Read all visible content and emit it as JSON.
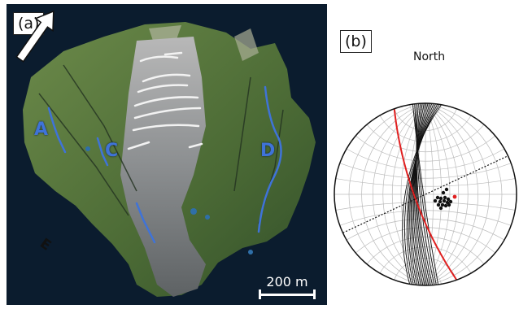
{
  "panel_a": {
    "tag": "(a)",
    "fault_labels": [
      "A",
      "C",
      "D"
    ],
    "scale_label": "200 m",
    "arrow_label": "E"
  },
  "panel_b": {
    "tag": "(b)",
    "north_label": "North"
  },
  "colors": {
    "background": "#0b1c2e",
    "terrain": "#4f6b3a",
    "rock": "#8a8d8f",
    "fault": "#3f73d8",
    "highlight_circle": "#e02020",
    "pole_highlight": "#e02020"
  }
}
